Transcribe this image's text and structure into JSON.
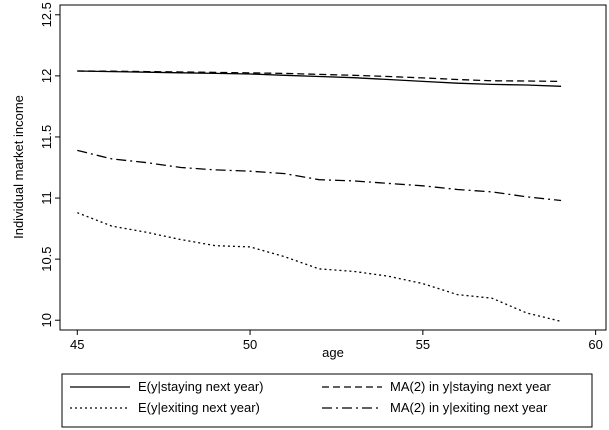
{
  "chart_data": {
    "type": "line",
    "title": "",
    "xlabel": "age",
    "ylabel": "Individual market income",
    "xlim": [
      44.5,
      60.3
    ],
    "ylim": [
      9.92,
      12.58
    ],
    "xticks": [
      45,
      50,
      55,
      60
    ],
    "yticks": [
      10,
      10.5,
      11,
      11.5,
      12,
      12.5
    ],
    "xtick_labels": [
      "45",
      "50",
      "55",
      "60"
    ],
    "ytick_labels": [
      "10",
      "10.5",
      "11",
      "11.5",
      "12",
      "12.5"
    ],
    "grid": false,
    "legend_position": "bottom",
    "x": [
      45,
      46,
      47,
      48,
      49,
      50,
      51,
      52,
      53,
      54,
      55,
      56,
      57,
      58,
      59
    ],
    "series": [
      {
        "name": "E(y|staying next year)",
        "dash": "solid",
        "color": "#000000",
        "values": [
          12.04,
          12.035,
          12.03,
          12.025,
          12.02,
          12.015,
          12.005,
          11.995,
          11.985,
          11.97,
          11.955,
          11.94,
          11.93,
          11.925,
          11.915
        ]
      },
      {
        "name": "MA(2) in y|staying next year",
        "dash": "dashed",
        "color": "#000000",
        "values": [
          12.04,
          12.038,
          12.035,
          12.032,
          12.028,
          12.024,
          12.02,
          12.012,
          12.005,
          11.995,
          11.983,
          11.97,
          11.96,
          11.958,
          11.955
        ]
      },
      {
        "name": "E(y|exiting next year)",
        "dash": "dotted",
        "color": "#000000",
        "values": [
          10.88,
          10.77,
          10.72,
          10.66,
          10.61,
          10.6,
          10.52,
          10.42,
          10.4,
          10.36,
          10.3,
          10.21,
          10.18,
          10.06,
          9.99
        ]
      },
      {
        "name": "MA(2) in y|exiting next year",
        "dash": "dashdot",
        "color": "#000000",
        "values": [
          11.39,
          11.32,
          11.29,
          11.25,
          11.23,
          11.22,
          11.2,
          11.15,
          11.14,
          11.12,
          11.1,
          11.07,
          11.05,
          11.01,
          10.98
        ]
      }
    ]
  }
}
